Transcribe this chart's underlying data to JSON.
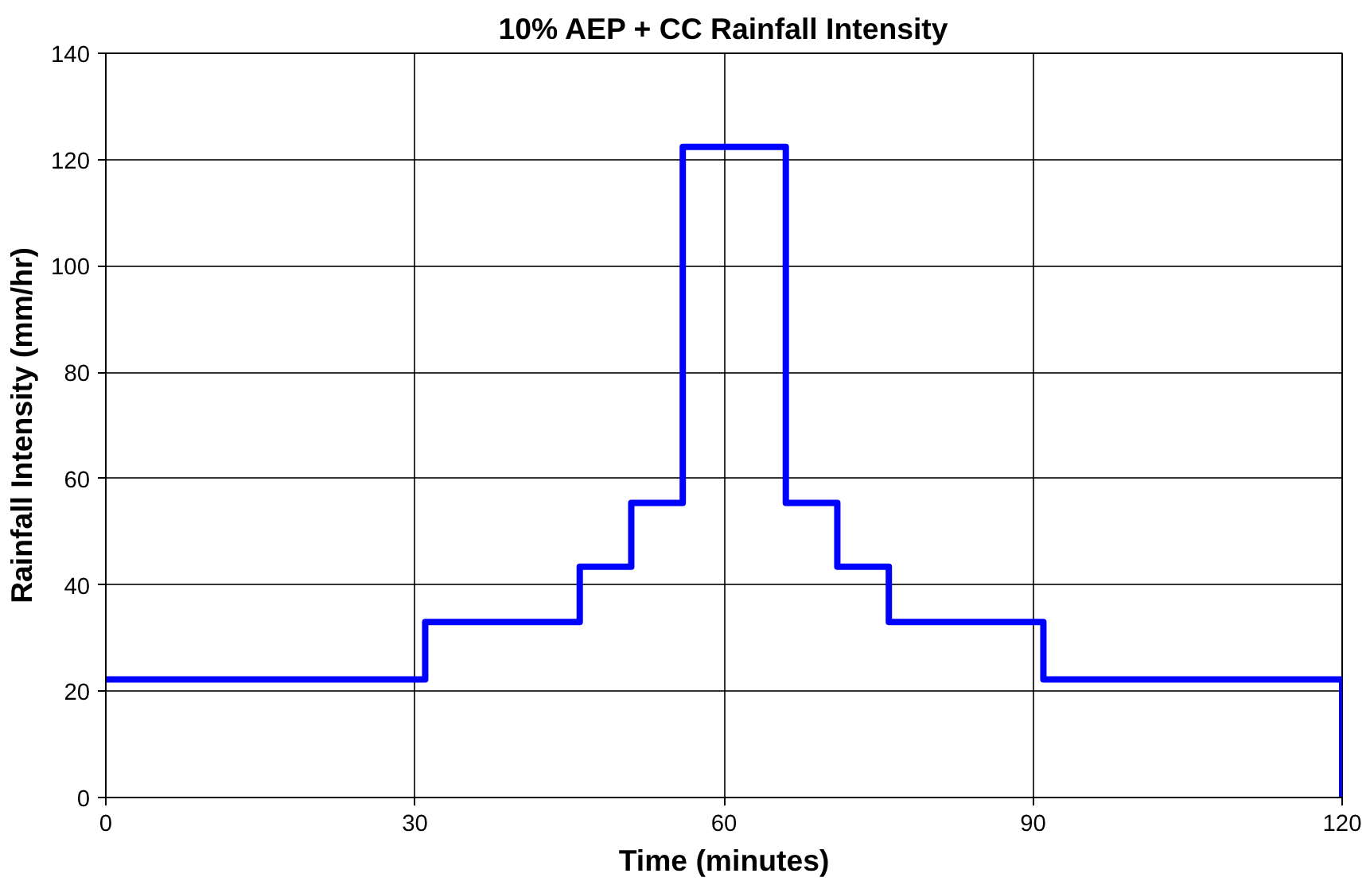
{
  "chart_data": {
    "type": "step",
    "title": "10% AEP + CC Rainfall Intensity",
    "xlabel": "Time (minutes)",
    "ylabel": "Rainfall Intensity (mm/hr)",
    "x": [
      0,
      31,
      46,
      51,
      56,
      66,
      71,
      76,
      91,
      120
    ],
    "series": [
      {
        "color": "#0000ff",
        "values": [
          22.2,
          33,
          43.4,
          55.4,
          122.4,
          55.4,
          43.4,
          33,
          22.2,
          0
        ]
      }
    ],
    "xlim": [
      0,
      120
    ],
    "xticks": [
      0,
      30,
      60,
      90,
      120
    ],
    "ylim": [
      0,
      140
    ],
    "yticks": [
      0,
      20,
      40,
      60,
      80,
      100,
      120,
      140
    ],
    "grid": true,
    "line_style": "solid",
    "marker": "none"
  }
}
